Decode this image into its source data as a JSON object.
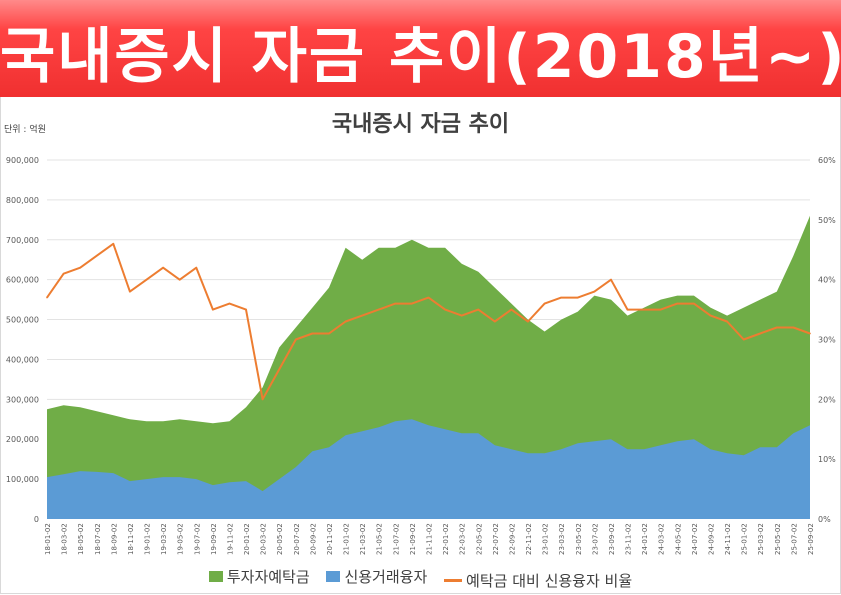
{
  "banner": {
    "title": "국내증시 자금 추이(2018년~)"
  },
  "chart_data": {
    "type": "area+line",
    "title": "국내증시 자금 추이",
    "unit_label": "단위 : 억원",
    "categories": [
      "18-01-02",
      "18-03-02",
      "18-05-02",
      "18-07-02",
      "18-09-02",
      "18-11-02",
      "19-01-02",
      "19-03-02",
      "19-05-02",
      "19-07-02",
      "19-09-02",
      "19-11-02",
      "20-01-02",
      "20-03-02",
      "20-05-02",
      "20-07-02",
      "20-09-02",
      "20-11-02",
      "21-01-02",
      "21-03-02",
      "21-05-02",
      "21-07-02",
      "21-09-02",
      "21-11-02",
      "22-01-02",
      "22-03-02",
      "22-05-02",
      "22-07-02",
      "22-09-02",
      "22-11-02",
      "23-01-02",
      "23-03-02",
      "23-05-02",
      "23-07-02",
      "23-09-02",
      "23-11-02",
      "24-01-02",
      "24-03-02",
      "24-05-02",
      "24-07-02",
      "24-09-02",
      "24-11-02",
      "25-01-02",
      "25-03-02",
      "25-05-02",
      "25-07-02",
      "25-09-02"
    ],
    "series": [
      {
        "name": "투자자예탁금",
        "type": "area",
        "axis": "left",
        "color": "#70ad47",
        "values": [
          275000,
          285000,
          280000,
          270000,
          260000,
          250000,
          245000,
          245000,
          250000,
          245000,
          240000,
          245000,
          280000,
          330000,
          430000,
          480000,
          530000,
          580000,
          680000,
          650000,
          680000,
          680000,
          700000,
          680000,
          680000,
          640000,
          620000,
          580000,
          540000,
          500000,
          470000,
          500000,
          520000,
          560000,
          550000,
          510000,
          530000,
          550000,
          560000,
          560000,
          530000,
          510000,
          530000,
          550000,
          570000,
          660000,
          760000
        ]
      },
      {
        "name": "신용거래융자",
        "type": "area",
        "axis": "left",
        "color": "#5b9bd5",
        "values": [
          105000,
          112000,
          120000,
          118000,
          115000,
          95000,
          100000,
          105000,
          105000,
          100000,
          85000,
          92000,
          95000,
          70000,
          100000,
          130000,
          170000,
          180000,
          210000,
          220000,
          230000,
          245000,
          250000,
          235000,
          225000,
          215000,
          215000,
          185000,
          175000,
          165000,
          165000,
          175000,
          190000,
          195000,
          200000,
          175000,
          175000,
          185000,
          195000,
          200000,
          175000,
          165000,
          160000,
          180000,
          180000,
          215000,
          235000
        ]
      },
      {
        "name": "예탁금 대비 신용융자 비율",
        "type": "line",
        "axis": "right",
        "color": "#ed7d31",
        "values": [
          37,
          41,
          42,
          44,
          46,
          38,
          40,
          42,
          40,
          42,
          35,
          36,
          35,
          20,
          25,
          30,
          31,
          31,
          33,
          34,
          35,
          36,
          36,
          37,
          35,
          34,
          35,
          33,
          35,
          33,
          36,
          37,
          37,
          38,
          40,
          35,
          35,
          35,
          36,
          36,
          34,
          33,
          30,
          31,
          32,
          32,
          31
        ]
      }
    ],
    "left_axis": {
      "ylim": [
        0,
        900000
      ],
      "ticks": [
        "0",
        "100,000",
        "200,000",
        "300,000",
        "400,000",
        "500,000",
        "600,000",
        "700,000",
        "800,000",
        "900,000"
      ]
    },
    "right_axis": {
      "ylim": [
        0,
        60
      ],
      "ticks": [
        "0%",
        "10%",
        "20%",
        "30%",
        "40%",
        "50%",
        "60%"
      ]
    },
    "grid": true,
    "legend_position": "bottom"
  }
}
